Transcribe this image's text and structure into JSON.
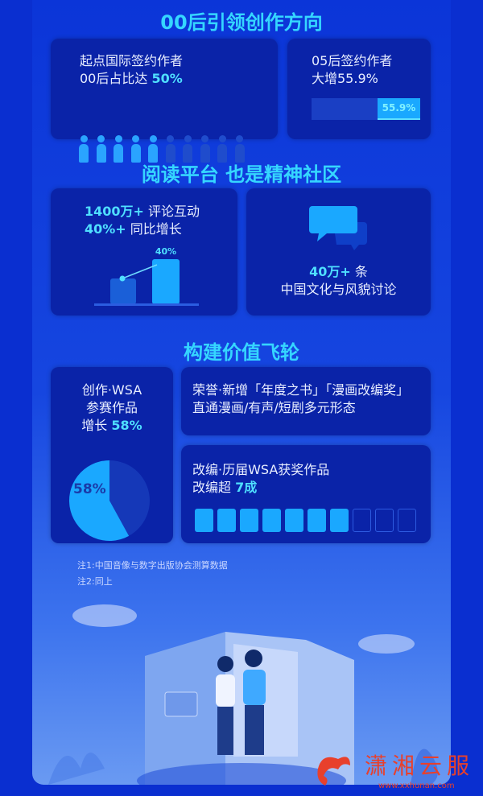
{
  "section1": {
    "title": "00后引领创作方向",
    "card1": {
      "line1": "起点国际签约作者",
      "line2_prefix": "00后占比达 ",
      "line2_value": "50%",
      "people_total": 10,
      "people_filled": 5
    },
    "card2": {
      "line1": "05后签约作者",
      "line2": "大增55.9%",
      "bar_label": "55.9%",
      "bar_value": 55.9
    }
  },
  "section2": {
    "title": "阅读平台 也是精神社区",
    "card1": {
      "v1": "1400万+",
      "t1": " 评论互动",
      "v2": "40%+",
      "t2": " 同比增长",
      "bar_label": "40%"
    },
    "card2": {
      "value": "40万+",
      "unit": " 条",
      "line2": "中国文化与风貌讨论"
    }
  },
  "section3": {
    "title": "构建价值飞轮",
    "card1": {
      "line1": "创作·WSA",
      "line2": "参赛作品",
      "line3_prefix": "增长 ",
      "line3_value": "58%",
      "pie_label": "58%",
      "pie_value": 58
    },
    "card2": {
      "line1": "荣誉·新增「年度之书」「漫画改编奖」",
      "line2": "直通漫画/有声/短剧多元形态"
    },
    "card3": {
      "line1": "改编·历届WSA获奖作品",
      "line2_prefix": "改编超 ",
      "line2_value": "7成",
      "blocks_total": 10,
      "blocks_filled": 7
    }
  },
  "notes": [
    "注1:中国音像与数字出版协会测算数据",
    "注2:同上"
  ],
  "watermark": {
    "name": "潇湘云服",
    "url": "www.xxhunan.com"
  },
  "colors": {
    "accent": "#35d6ff",
    "card": "#0a23a8",
    "fill": "#1aa8ff",
    "dim": "#1e47c8",
    "brand": "#e8402c"
  }
}
